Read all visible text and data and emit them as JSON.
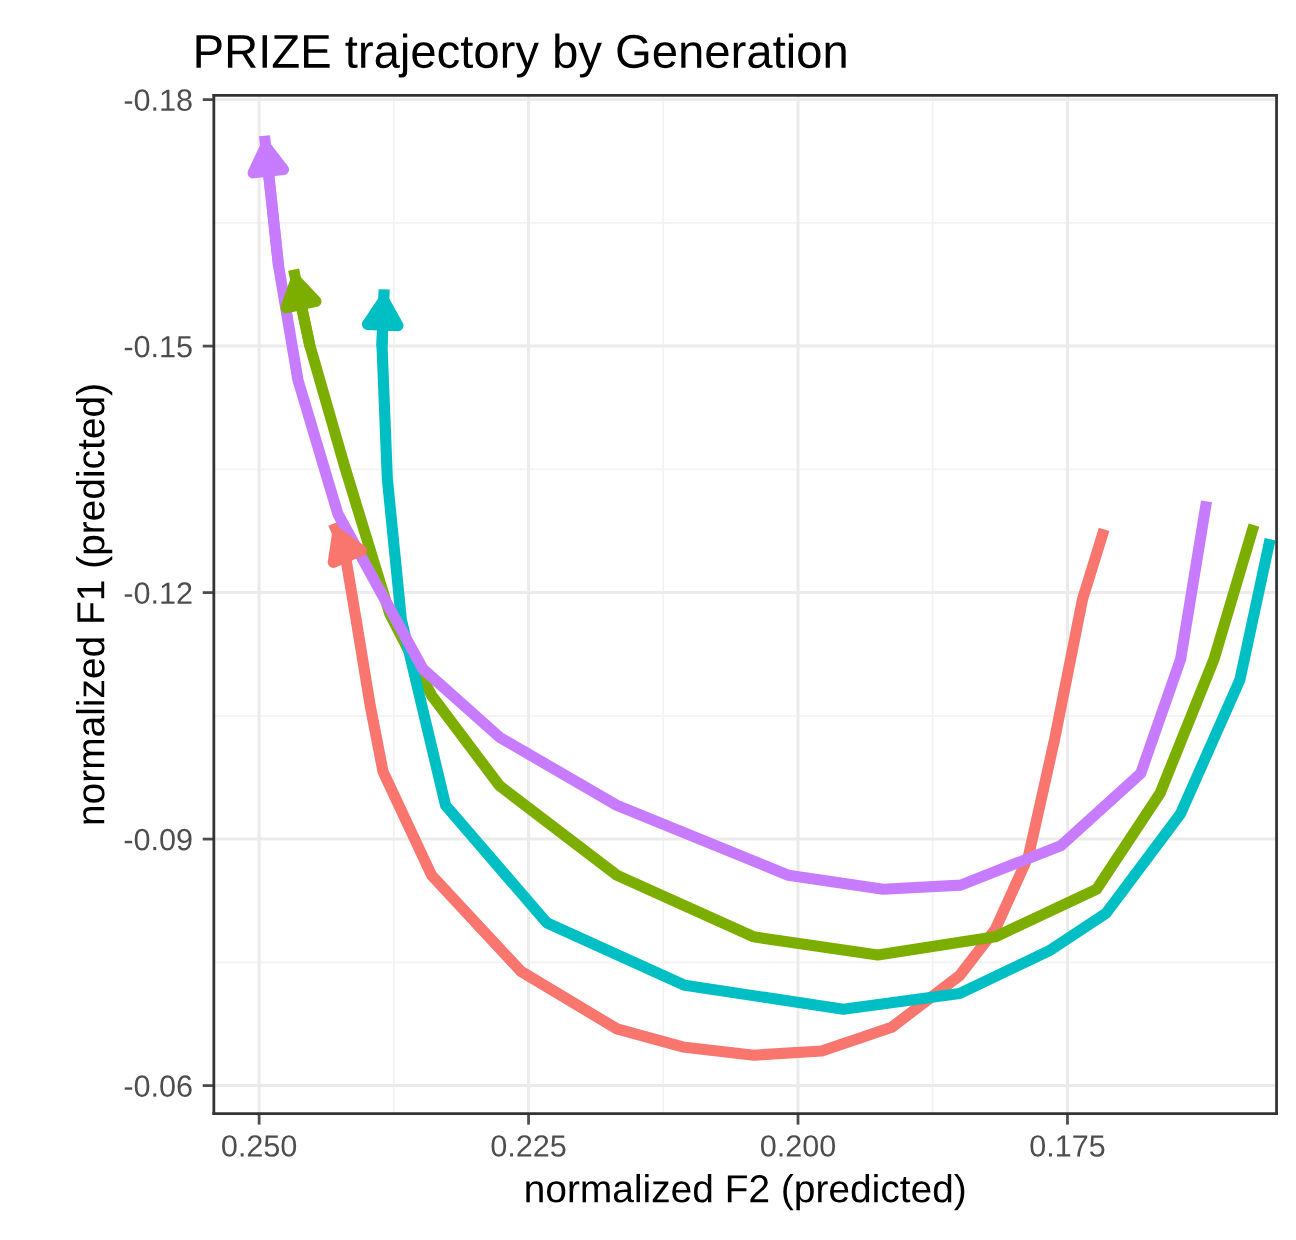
{
  "chart_data": {
    "type": "line",
    "title": "PRIZE trajectory by Generation",
    "xlabel": "normalized F2 (predicted)",
    "ylabel": "normalized F1 (predicted)",
    "xlim": [
      0.2542,
      0.1556
    ],
    "ylim": [
      -0.0566,
      -0.1805
    ],
    "xticks": [
      {
        "value": 0.25,
        "label": "0.250"
      },
      0.225,
      {
        "value": 0.2,
        "label": "0.200"
      },
      0.175
    ],
    "yticks": [
      -0.18,
      -0.15,
      -0.12,
      -0.09,
      -0.06
    ],
    "grid": true,
    "legend": false,
    "marker": "none",
    "line_style": "solid",
    "series": [
      {
        "color": "#f8766d",
        "x": [
          0.1716,
          0.1736,
          0.1762,
          0.1786,
          0.1817,
          0.185,
          0.1913,
          0.1978,
          0.2041,
          0.2107,
          0.2168,
          0.2257,
          0.234,
          0.2385,
          0.2397,
          0.241,
          0.2421,
          0.2431
        ],
        "values": [
          -0.1277,
          -0.1192,
          -0.1021,
          -0.088,
          -0.079,
          -0.0734,
          -0.0671,
          -0.0642,
          -0.0637,
          -0.0647,
          -0.0669,
          -0.0739,
          -0.0856,
          -0.0982,
          -0.1063,
          -0.1167,
          -0.1253,
          -0.1284
        ]
      },
      {
        "color": "#7cae00",
        "x": [
          0.1577,
          0.1614,
          0.1664,
          0.1723,
          0.1817,
          0.1926,
          0.2041,
          0.2168,
          0.2277,
          0.234,
          0.2379,
          0.2421,
          0.2453,
          0.2468
        ],
        "values": [
          -0.1282,
          -0.1119,
          -0.0956,
          -0.0839,
          -0.0781,
          -0.0759,
          -0.0781,
          -0.0856,
          -0.0965,
          -0.1075,
          -0.1175,
          -0.1355,
          -0.1501,
          -0.1593
        ]
      },
      {
        "color": "#00bfc4",
        "x": [
          0.1562,
          0.159,
          0.1645,
          0.1714,
          0.1767,
          0.185,
          0.1958,
          0.2105,
          0.2233,
          0.2327,
          0.2368,
          0.2381,
          0.2386,
          0.2384
        ],
        "values": [
          -0.1265,
          -0.1094,
          -0.0931,
          -0.081,
          -0.0764,
          -0.0712,
          -0.0693,
          -0.0722,
          -0.0798,
          -0.0941,
          -0.1167,
          -0.1338,
          -0.1501,
          -0.1569
        ]
      },
      {
        "color": "#c77cff",
        "x": [
          0.1621,
          0.1645,
          0.1682,
          0.1756,
          0.1849,
          0.1921,
          0.2009,
          0.2168,
          0.2277,
          0.2348,
          0.2427,
          0.2464,
          0.2482,
          0.2495
        ],
        "values": [
          -0.1311,
          -0.1119,
          -0.098,
          -0.0892,
          -0.0844,
          -0.0839,
          -0.0856,
          -0.0941,
          -0.1024,
          -0.1107,
          -0.1296,
          -0.1459,
          -0.1598,
          -0.1756
        ]
      }
    ]
  }
}
